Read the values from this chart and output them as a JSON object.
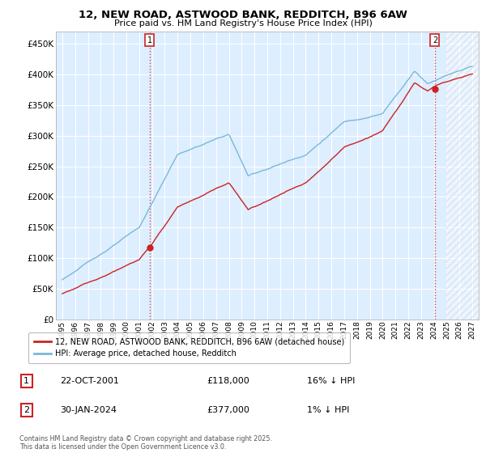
{
  "title": "12, NEW ROAD, ASTWOOD BANK, REDDITCH, B96 6AW",
  "subtitle": "Price paid vs. HM Land Registry's House Price Index (HPI)",
  "legend_line1": "12, NEW ROAD, ASTWOOD BANK, REDDITCH, B96 6AW (detached house)",
  "legend_line2": "HPI: Average price, detached house, Redditch",
  "sale1_date": "22-OCT-2001",
  "sale1_price": "£118,000",
  "sale1_hpi": "16% ↓ HPI",
  "sale2_date": "30-JAN-2024",
  "sale2_price": "£377,000",
  "sale2_hpi": "1% ↓ HPI",
  "footer": "Contains HM Land Registry data © Crown copyright and database right 2025.\nThis data is licensed under the Open Government Licence v3.0.",
  "hpi_color": "#7ab8d9",
  "price_color": "#cc2222",
  "plot_bg": "#ddeeff",
  "sale1_x": 2001.81,
  "sale1_y": 118000,
  "sale2_x": 2024.08,
  "sale2_y": 377000,
  "ylim": [
    0,
    470000
  ],
  "xlim": [
    1994.5,
    2027.5
  ]
}
